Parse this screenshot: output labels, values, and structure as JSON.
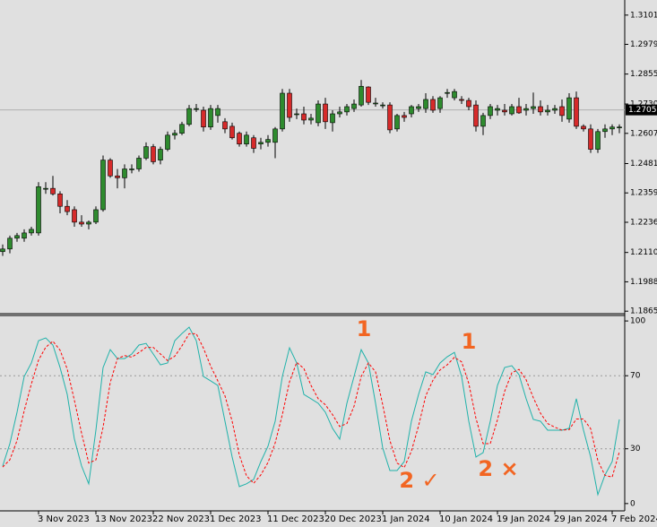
{
  "chart_data": [
    {
      "type": "candlestick",
      "categories": [
        null,
        null,
        null,
        null,
        null,
        "3 Nov 2023",
        null,
        null,
        null,
        null,
        null,
        null,
        null,
        "13 Nov 2023",
        null,
        null,
        null,
        null,
        null,
        null,
        null,
        "22 Nov 2023",
        null,
        null,
        null,
        null,
        null,
        null,
        null,
        "1 Dec 2023",
        null,
        null,
        null,
        null,
        null,
        null,
        null,
        "11 Dec 2023",
        null,
        null,
        null,
        null,
        null,
        null,
        null,
        "20 Dec 2023",
        null,
        null,
        null,
        null,
        null,
        null,
        null,
        "1 Jan 2024",
        null,
        null,
        null,
        null,
        null,
        null,
        null,
        "10 Jan 2024",
        null,
        null,
        null,
        null,
        null,
        null,
        null,
        "19 Jan 2024",
        null,
        null,
        null,
        null,
        null,
        null,
        null,
        "29 Jan 2024",
        null,
        null,
        null,
        null,
        null,
        null,
        null,
        "7 Feb 2024",
        null
      ],
      "open": [
        1.2114,
        1.2125,
        1.217,
        1.217,
        1.2192,
        1.2192,
        1.2378,
        1.2378,
        1.2355,
        1.2303,
        1.2289,
        1.2237,
        1.2229,
        1.2237,
        1.2289,
        1.2496,
        1.243,
        1.2422,
        1.2459,
        1.2459,
        1.2504,
        1.2552,
        1.2496,
        1.2541,
        1.26,
        1.2608,
        1.2645,
        1.2711,
        1.2704,
        1.2634,
        1.2682,
        1.2656,
        1.2637,
        1.2608,
        1.2563,
        1.2589,
        1.2563,
        1.257,
        1.257,
        1.2626,
        1.2775,
        1.2689,
        1.2689,
        1.2663,
        1.2652,
        1.273,
        1.2652,
        1.2689,
        1.2697,
        1.2711,
        1.2726,
        1.2801,
        1.2734,
        1.2726,
        1.2726,
        1.2626,
        1.2682,
        1.2689,
        1.2711,
        1.2711,
        1.2749,
        1.2711,
        1.2775,
        1.2756,
        1.2749,
        1.2745,
        1.2726,
        1.2637,
        1.2682,
        1.2704,
        1.2704,
        1.2689,
        1.2719,
        1.2704,
        1.2711,
        1.2719,
        1.2697,
        1.2704,
        1.2719,
        1.2667,
        1.2756,
        1.2637,
        1.2626,
        1.2541,
        1.2615,
        1.2626,
        1.2634
      ],
      "high": [
        1.2144,
        1.2181,
        1.2192,
        1.2207,
        1.2218,
        1.2404,
        1.2404,
        1.243,
        1.2366,
        1.2329,
        1.2303,
        1.2266,
        1.2244,
        1.2303,
        1.2515,
        1.2504,
        1.2459,
        1.2478,
        1.2478,
        1.2515,
        1.257,
        1.2563,
        1.2552,
        1.2615,
        1.2622,
        1.2656,
        1.2726,
        1.273,
        1.2719,
        1.2726,
        1.2726,
        1.2671,
        1.2652,
        1.2615,
        1.2615,
        1.26,
        1.2589,
        1.26,
        1.2634,
        1.2793,
        1.2793,
        1.2711,
        1.2719,
        1.2689,
        1.2745,
        1.2756,
        1.2704,
        1.2719,
        1.273,
        1.2749,
        1.283,
        1.2804,
        1.2756,
        1.2737,
        1.2737,
        1.2689,
        1.2697,
        1.2726,
        1.273,
        1.2775,
        1.2763,
        1.2763,
        1.2793,
        1.2793,
        1.2763,
        1.2756,
        1.2745,
        1.2693,
        1.273,
        1.2726,
        1.273,
        1.273,
        1.2756,
        1.273,
        1.2778,
        1.2745,
        1.2726,
        1.2726,
        1.2749,
        1.2775,
        1.2782,
        1.2645,
        1.2645,
        1.2626,
        1.2645,
        1.2645,
        1.2645
      ],
      "low": [
        1.2096,
        1.2107,
        1.2155,
        1.2155,
        1.2181,
        1.2181,
        1.2355,
        1.2348,
        1.2274,
        1.2266,
        1.2218,
        1.2218,
        1.2207,
        1.2229,
        1.2281,
        1.2422,
        1.2378,
        1.2378,
        1.2441,
        1.2448,
        1.2496,
        1.2478,
        1.2478,
        1.2533,
        1.2582,
        1.26,
        1.2637,
        1.2697,
        1.2615,
        1.2622,
        1.2652,
        1.2608,
        1.2582,
        1.2552,
        1.2552,
        1.2526,
        1.2541,
        1.2552,
        1.2504,
        1.2615,
        1.2656,
        1.2667,
        1.2645,
        1.2645,
        1.2637,
        1.2626,
        1.2615,
        1.2674,
        1.2682,
        1.2697,
        1.2719,
        1.2726,
        1.2719,
        1.2711,
        1.2608,
        1.2615,
        1.2656,
        1.2674,
        1.2697,
        1.2693,
        1.2693,
        1.2693,
        1.2756,
        1.2745,
        1.273,
        1.2704,
        1.2615,
        1.26,
        1.2667,
        1.2682,
        1.2682,
        1.2682,
        1.2689,
        1.2682,
        1.2689,
        1.2682,
        1.2682,
        1.2689,
        1.2656,
        1.2652,
        1.2626,
        1.2615,
        1.2526,
        1.2526,
        1.2589,
        1.26,
        1.2608
      ],
      "close": [
        1.2125,
        1.217,
        1.2181,
        1.2192,
        1.2207,
        1.2385,
        1.2378,
        1.2355,
        1.2303,
        1.2281,
        1.2237,
        1.2229,
        1.2237,
        1.2289,
        1.2496,
        1.243,
        1.2422,
        1.2459,
        1.2459,
        1.2504,
        1.2552,
        1.2489,
        1.2541,
        1.26,
        1.2608,
        1.2645,
        1.2711,
        1.2711,
        1.2634,
        1.2711,
        1.2711,
        1.2626,
        1.2589,
        1.2563,
        1.26,
        1.2545,
        1.257,
        1.2582,
        1.2626,
        1.2775,
        1.2674,
        1.2689,
        1.2663,
        1.2671,
        1.273,
        1.2656,
        1.2689,
        1.2697,
        1.2719,
        1.273,
        1.2804,
        1.2737,
        1.2734,
        1.2726,
        1.2622,
        1.2682,
        1.2674,
        1.2719,
        1.2719,
        1.2749,
        1.2704,
        1.2756,
        1.2778,
        1.2782,
        1.2745,
        1.2719,
        1.2637,
        1.2682,
        1.2719,
        1.2711,
        1.2697,
        1.2719,
        1.2693,
        1.2711,
        1.2719,
        1.2697,
        1.2704,
        1.2711,
        1.2682,
        1.2756,
        1.2637,
        1.2626,
        1.2541,
        1.2615,
        1.2626,
        1.2634,
        1.2634
      ],
      "up_color": "#2e8b2e",
      "down_color": "#d62a2a",
      "last_price": 1.27053,
      "ylim": [
        1.1855,
        1.3164
      ],
      "yticks": [
        {
          "value": 1.3101,
          "label": "1.31010"
        },
        {
          "value": 1.2979,
          "label": "1.29790"
        },
        {
          "value": 1.2855,
          "label": "1.28550"
        },
        {
          "value": 1.273,
          "label": "1.27300"
        },
        1.26075,
        1.24815,
        {
          "value": 1.2359,
          "label": "1.23590"
        },
        1.22365,
        1.21105,
        {
          "value": 1.1988,
          "label": "1.19880"
        },
        1.18655
      ]
    },
    {
      "type": "line",
      "series": [
        {
          "color": "#20b2aa",
          "style": "solid",
          "values": [
            20.6,
            32.8,
            50,
            69.6,
            77,
            89.2,
            90.7,
            86.8,
            74.5,
            59.8,
            35.3,
            20.6,
            10.8,
            40.2,
            74.5,
            84.3,
            79.4,
            79.4,
            81.9,
            86.8,
            87.7,
            81.9,
            76,
            77,
            89.2,
            93.1,
            96.6,
            89.2,
            69.6,
            67.2,
            64.7,
            45.1,
            25.5,
            9.3,
            10.8,
            13.2,
            23,
            31.4,
            45.1,
            69.6,
            85.3,
            77,
            59.8,
            57.4,
            54.9,
            50,
            41.2,
            35.3,
            54.9,
            69.6,
            84.3,
            77,
            54.9,
            30.4,
            18.1,
            18.1,
            23,
            45.1,
            59.8,
            72.1,
            70.6,
            77,
            80.4,
            82.8,
            69.6,
            45.1,
            25.5,
            27.9,
            45.1,
            64.7,
            74.5,
            75.5,
            70.6,
            57.4,
            46.1,
            45.1,
            40.2,
            40.2,
            40.2,
            41.2,
            57.4,
            40.2,
            25.5,
            4.9,
            15.7,
            23,
            46.1
          ]
        },
        {
          "color": "#ff0000",
          "style": "dashed",
          "values": [
            20,
            24,
            34.5,
            50.8,
            65.5,
            78.6,
            85.6,
            88.9,
            84,
            73.7,
            56.5,
            38.6,
            22.2,
            23.9,
            41.8,
            66.3,
            79.4,
            81,
            80.2,
            82.7,
            85.5,
            85.5,
            81.9,
            78.3,
            80.7,
            86.4,
            93,
            93,
            85.1,
            75.3,
            67.2,
            59,
            45.1,
            26.6,
            15.2,
            11.1,
            15.7,
            22.5,
            33.2,
            48.7,
            66.7,
            77.3,
            74,
            64.7,
            57.4,
            54.1,
            48.7,
            42.2,
            43.8,
            53.3,
            69.6,
            77,
            72.1,
            54.1,
            34.5,
            22.2,
            19.7,
            28.7,
            42.6,
            59,
            67.5,
            73.2,
            76,
            80.1,
            77.6,
            65.8,
            46.7,
            32.8,
            32.8,
            45.9,
            61.4,
            71.6,
            73.5,
            67.8,
            58,
            49.5,
            43.8,
            41.8,
            40.2,
            40.5,
            46.3,
            46.3,
            41,
            23.5,
            15.4,
            14.5,
            28.3
          ]
        }
      ],
      "ylim": [
        -4,
        103
      ],
      "yticks": [
        0,
        30,
        70,
        100
      ],
      "annotations": [
        "1",
        "1",
        "2 ✓",
        "2 ×"
      ],
      "annotation_color": "#f26522"
    }
  ]
}
